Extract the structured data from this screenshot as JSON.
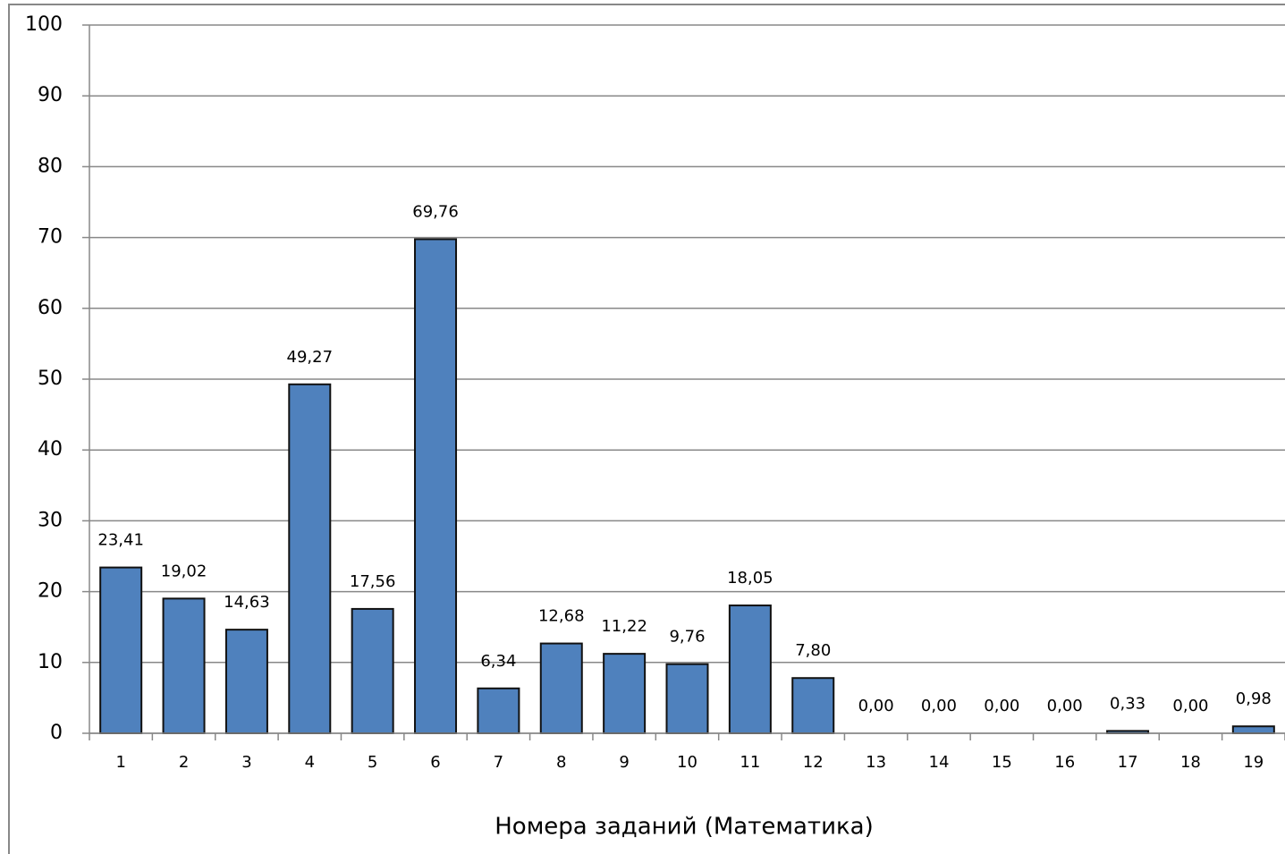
{
  "chart_data": {
    "type": "bar",
    "x_label": "Номера заданий (Математика)",
    "categories": [
      "1",
      "2",
      "3",
      "4",
      "5",
      "6",
      "7",
      "8",
      "9",
      "10",
      "11",
      "12",
      "13",
      "14",
      "15",
      "16",
      "17",
      "18",
      "19"
    ],
    "values": [
      23.41,
      19.02,
      14.63,
      49.27,
      17.56,
      69.76,
      6.34,
      12.68,
      11.22,
      9.76,
      18.05,
      7.8,
      0,
      0,
      0,
      0,
      0.33,
      0,
      0.98
    ],
    "value_labels": [
      "23,41",
      "19,02",
      "14,63",
      "49,27",
      "17,56",
      "69,76",
      "6,34",
      "12,68",
      "11,22",
      "9,76",
      "18,05",
      "7,80",
      "0,00",
      "0,00",
      "0,00",
      "0,00",
      "0,33",
      "0,00",
      "0,98"
    ],
    "color": "#4f81bd",
    "ylim": [
      0,
      100
    ],
    "yticks": [
      0,
      10,
      20,
      30,
      40,
      50,
      60,
      70,
      80,
      90,
      100
    ],
    "grid": true
  }
}
